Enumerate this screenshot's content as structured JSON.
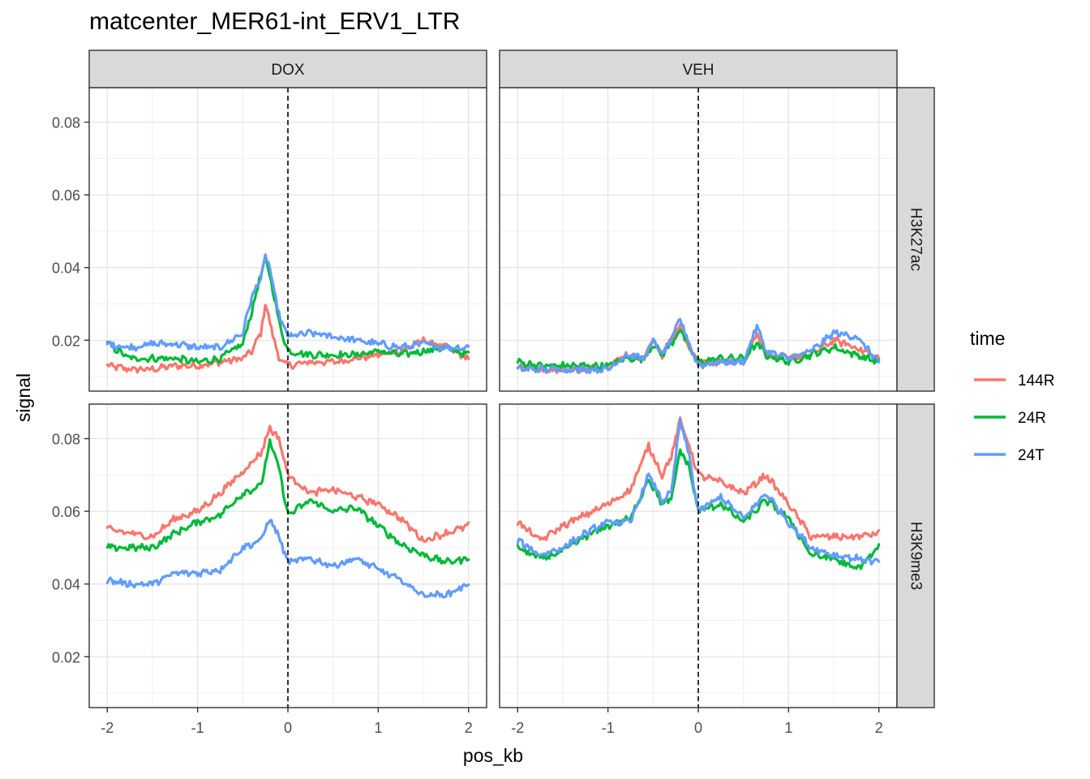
{
  "chart_data": {
    "type": "line",
    "title": "matcenter_MER61-int_ERV1_LTR",
    "xlabel": "pos_kb",
    "ylabel": "signal",
    "xlim": [
      -2.2,
      2.2
    ],
    "ylim": [
      0.006,
      0.0895
    ],
    "x_ticks": [
      -2,
      -1,
      0,
      1,
      2
    ],
    "x_tick_labels": [
      "-2",
      "-1",
      "0",
      "1",
      "2"
    ],
    "y_ticks": [
      0.02,
      0.04,
      0.06,
      0.08
    ],
    "y_tick_labels": [
      "0.02",
      "0.04",
      "0.06",
      "0.08"
    ],
    "vline_x": 0,
    "grid": true,
    "legend": {
      "title": "time",
      "position": "right",
      "entries": [
        "144R",
        "24R",
        "24T"
      ]
    },
    "col_facets": [
      "DOX",
      "VEH"
    ],
    "row_facets": [
      "H3K27ac",
      "H3K9me3"
    ],
    "series_colors": {
      "144R": "#F8766D",
      "24R": "#00BA38",
      "24T": "#619CFF"
    },
    "panels": [
      {
        "col": "DOX",
        "row": "H3K27ac",
        "series": [
          {
            "name": "144R",
            "x": [
              -2,
              -1.75,
              -1.5,
              -1.25,
              -1,
              -0.75,
              -0.5,
              -0.4,
              -0.3,
              -0.25,
              -0.2,
              -0.15,
              -0.1,
              0,
              0.25,
              0.5,
              0.75,
              1,
              1.25,
              1.5,
              1.75,
              2
            ],
            "y": [
              0.013,
              0.012,
              0.012,
              0.013,
              0.013,
              0.014,
              0.015,
              0.017,
              0.022,
              0.03,
              0.025,
              0.02,
              0.015,
              0.013,
              0.014,
              0.014,
              0.015,
              0.016,
              0.017,
              0.02,
              0.018,
              0.015
            ]
          },
          {
            "name": "24R",
            "x": [
              -2,
              -1.75,
              -1.5,
              -1.25,
              -1,
              -0.75,
              -0.5,
              -0.4,
              -0.3,
              -0.25,
              -0.2,
              -0.15,
              -0.1,
              0,
              0.25,
              0.5,
              0.75,
              1,
              1.25,
              1.5,
              1.75,
              2
            ],
            "y": [
              0.019,
              0.015,
              0.015,
              0.015,
              0.014,
              0.015,
              0.019,
              0.028,
              0.038,
              0.042,
              0.038,
              0.032,
              0.025,
              0.017,
              0.016,
              0.016,
              0.016,
              0.017,
              0.016,
              0.017,
              0.018,
              0.016
            ]
          },
          {
            "name": "24T",
            "x": [
              -2,
              -1.75,
              -1.5,
              -1.25,
              -1,
              -0.75,
              -0.5,
              -0.4,
              -0.3,
              -0.25,
              -0.2,
              -0.15,
              -0.1,
              0,
              0.25,
              0.5,
              0.75,
              1,
              1.25,
              1.5,
              1.75,
              2
            ],
            "y": [
              0.019,
              0.018,
              0.019,
              0.019,
              0.018,
              0.018,
              0.022,
              0.032,
              0.037,
              0.043,
              0.04,
              0.033,
              0.027,
              0.021,
              0.022,
              0.021,
              0.02,
              0.019,
              0.018,
              0.019,
              0.018,
              0.018
            ]
          }
        ]
      },
      {
        "col": "VEH",
        "row": "H3K27ac",
        "series": [
          {
            "name": "144R",
            "x": [
              -2,
              -1.75,
              -1.5,
              -1.25,
              -1,
              -0.8,
              -0.6,
              -0.5,
              -0.4,
              -0.3,
              -0.2,
              -0.1,
              0,
              0.25,
              0.5,
              0.65,
              0.75,
              1,
              1.25,
              1.5,
              1.75,
              2
            ],
            "y": [
              0.013,
              0.012,
              0.012,
              0.012,
              0.013,
              0.016,
              0.015,
              0.02,
              0.016,
              0.02,
              0.024,
              0.018,
              0.014,
              0.014,
              0.014,
              0.022,
              0.016,
              0.015,
              0.016,
              0.02,
              0.018,
              0.015
            ]
          },
          {
            "name": "24R",
            "x": [
              -2,
              -1.75,
              -1.5,
              -1.25,
              -1,
              -0.8,
              -0.6,
              -0.5,
              -0.4,
              -0.3,
              -0.2,
              -0.1,
              0,
              0.25,
              0.5,
              0.65,
              0.75,
              1,
              1.25,
              1.5,
              1.75,
              2
            ],
            "y": [
              0.014,
              0.013,
              0.013,
              0.013,
              0.013,
              0.015,
              0.015,
              0.019,
              0.016,
              0.019,
              0.023,
              0.018,
              0.014,
              0.015,
              0.015,
              0.019,
              0.016,
              0.014,
              0.016,
              0.018,
              0.016,
              0.014
            ]
          },
          {
            "name": "24T",
            "x": [
              -2,
              -1.75,
              -1.5,
              -1.25,
              -1,
              -0.8,
              -0.6,
              -0.5,
              -0.4,
              -0.3,
              -0.2,
              -0.1,
              0,
              0.25,
              0.5,
              0.65,
              0.75,
              1,
              1.25,
              1.5,
              1.75,
              2
            ],
            "y": [
              0.012,
              0.012,
              0.012,
              0.012,
              0.012,
              0.016,
              0.015,
              0.02,
              0.016,
              0.02,
              0.026,
              0.019,
              0.013,
              0.014,
              0.014,
              0.024,
              0.017,
              0.015,
              0.017,
              0.022,
              0.021,
              0.014
            ]
          }
        ]
      },
      {
        "col": "DOX",
        "row": "H3K9me3",
        "series": [
          {
            "name": "144R",
            "x": [
              -2,
              -1.75,
              -1.5,
              -1.25,
              -1,
              -0.75,
              -0.5,
              -0.3,
              -0.2,
              -0.1,
              0,
              0.25,
              0.5,
              0.75,
              1,
              1.25,
              1.5,
              1.75,
              2
            ],
            "y": [
              0.055,
              0.054,
              0.053,
              0.058,
              0.06,
              0.065,
              0.071,
              0.076,
              0.083,
              0.08,
              0.07,
              0.065,
              0.066,
              0.064,
              0.062,
              0.058,
              0.052,
              0.054,
              0.056
            ]
          },
          {
            "name": "24R",
            "x": [
              -2,
              -1.75,
              -1.5,
              -1.25,
              -1,
              -0.75,
              -0.5,
              -0.3,
              -0.2,
              -0.1,
              0,
              0.25,
              0.5,
              0.75,
              1,
              1.25,
              1.5,
              1.75,
              2
            ],
            "y": [
              0.05,
              0.05,
              0.05,
              0.054,
              0.057,
              0.059,
              0.065,
              0.067,
              0.079,
              0.072,
              0.059,
              0.063,
              0.06,
              0.061,
              0.056,
              0.051,
              0.048,
              0.046,
              0.047
            ]
          },
          {
            "name": "24T",
            "x": [
              -2,
              -1.75,
              -1.5,
              -1.25,
              -1,
              -0.75,
              -0.5,
              -0.3,
              -0.2,
              -0.1,
              0,
              0.25,
              0.5,
              0.75,
              1,
              1.25,
              1.5,
              1.75,
              2
            ],
            "y": [
              0.041,
              0.04,
              0.04,
              0.043,
              0.043,
              0.044,
              0.05,
              0.052,
              0.058,
              0.053,
              0.046,
              0.047,
              0.045,
              0.047,
              0.044,
              0.041,
              0.037,
              0.037,
              0.04
            ]
          }
        ]
      },
      {
        "col": "VEH",
        "row": "H3K9me3",
        "series": [
          {
            "name": "144R",
            "x": [
              -2,
              -1.75,
              -1.5,
              -1.25,
              -1,
              -0.75,
              -0.55,
              -0.4,
              -0.3,
              -0.2,
              -0.1,
              0,
              0.25,
              0.5,
              0.75,
              1,
              1.25,
              1.5,
              1.75,
              2
            ],
            "y": [
              0.057,
              0.052,
              0.056,
              0.059,
              0.062,
              0.066,
              0.078,
              0.07,
              0.075,
              0.085,
              0.078,
              0.07,
              0.068,
              0.065,
              0.07,
              0.062,
              0.053,
              0.053,
              0.053,
              0.054
            ]
          },
          {
            "name": "24R",
            "x": [
              -2,
              -1.75,
              -1.5,
              -1.25,
              -1,
              -0.75,
              -0.55,
              -0.4,
              -0.3,
              -0.2,
              -0.1,
              0,
              0.25,
              0.5,
              0.75,
              1,
              1.25,
              1.5,
              1.75,
              2
            ],
            "y": [
              0.05,
              0.047,
              0.049,
              0.053,
              0.056,
              0.058,
              0.069,
              0.062,
              0.063,
              0.077,
              0.072,
              0.06,
              0.062,
              0.057,
              0.063,
              0.058,
              0.048,
              0.047,
              0.044,
              0.05
            ]
          },
          {
            "name": "24T",
            "x": [
              -2,
              -1.75,
              -1.5,
              -1.25,
              -1,
              -0.75,
              -0.55,
              -0.4,
              -0.3,
              -0.2,
              -0.1,
              0,
              0.25,
              0.5,
              0.75,
              1,
              1.25,
              1.5,
              1.75,
              2
            ],
            "y": [
              0.052,
              0.048,
              0.05,
              0.054,
              0.057,
              0.057,
              0.07,
              0.063,
              0.065,
              0.085,
              0.075,
              0.06,
              0.064,
              0.058,
              0.065,
              0.057,
              0.05,
              0.048,
              0.047,
              0.046
            ]
          }
        ]
      }
    ]
  }
}
